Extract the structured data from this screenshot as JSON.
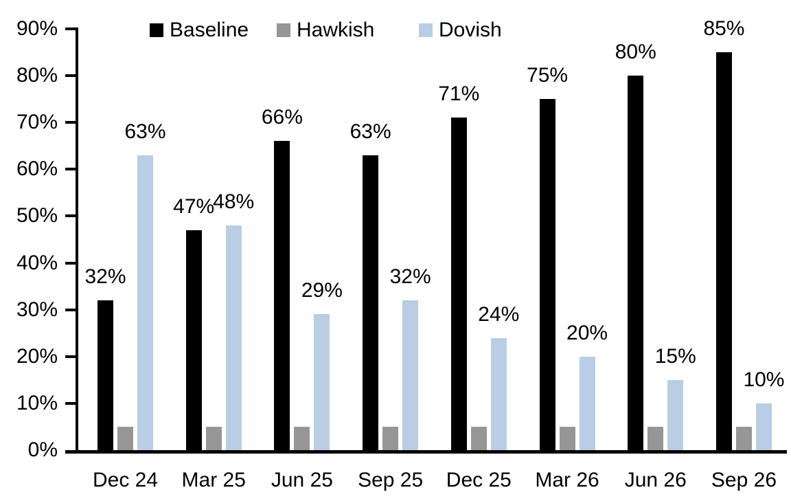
{
  "chart_data": {
    "type": "bar",
    "title": "",
    "xlabel": "",
    "ylabel": "",
    "grid": false,
    "categories": [
      "Dec 24",
      "Mar 25",
      "Jun 25",
      "Sep 25",
      "Dec 25",
      "Mar 26",
      "Jun 26",
      "Sep 26"
    ],
    "series": [
      {
        "name": "Baseline",
        "color": "#000000",
        "values": [
          32,
          47,
          66,
          63,
          71,
          75,
          80,
          85
        ],
        "labels": [
          "32%",
          "47%",
          "66%",
          "63%",
          "71%",
          "75%",
          "80%",
          "85%"
        ]
      },
      {
        "name": "Hawkish",
        "color": "#969696",
        "values": [
          5,
          5,
          5,
          5,
          5,
          5,
          5,
          5
        ],
        "labels": null
      },
      {
        "name": "Dovish",
        "color": "#B9CDE5",
        "values": [
          63,
          48,
          29,
          32,
          24,
          20,
          15,
          10
        ],
        "labels": [
          "63%",
          "48%",
          "29%",
          "32%",
          "24%",
          "20%",
          "15%",
          "10%"
        ]
      }
    ],
    "y_axis": {
      "min": 0,
      "max": 90,
      "step": 10,
      "tick_labels": [
        "0%",
        "10%",
        "20%",
        "30%",
        "40%",
        "50%",
        "60%",
        "70%",
        "80%",
        "90%"
      ]
    },
    "legend": {
      "position": "top",
      "entries": [
        "Baseline",
        "Hawkish",
        "Dovish"
      ]
    },
    "axis_color": "#000000"
  }
}
